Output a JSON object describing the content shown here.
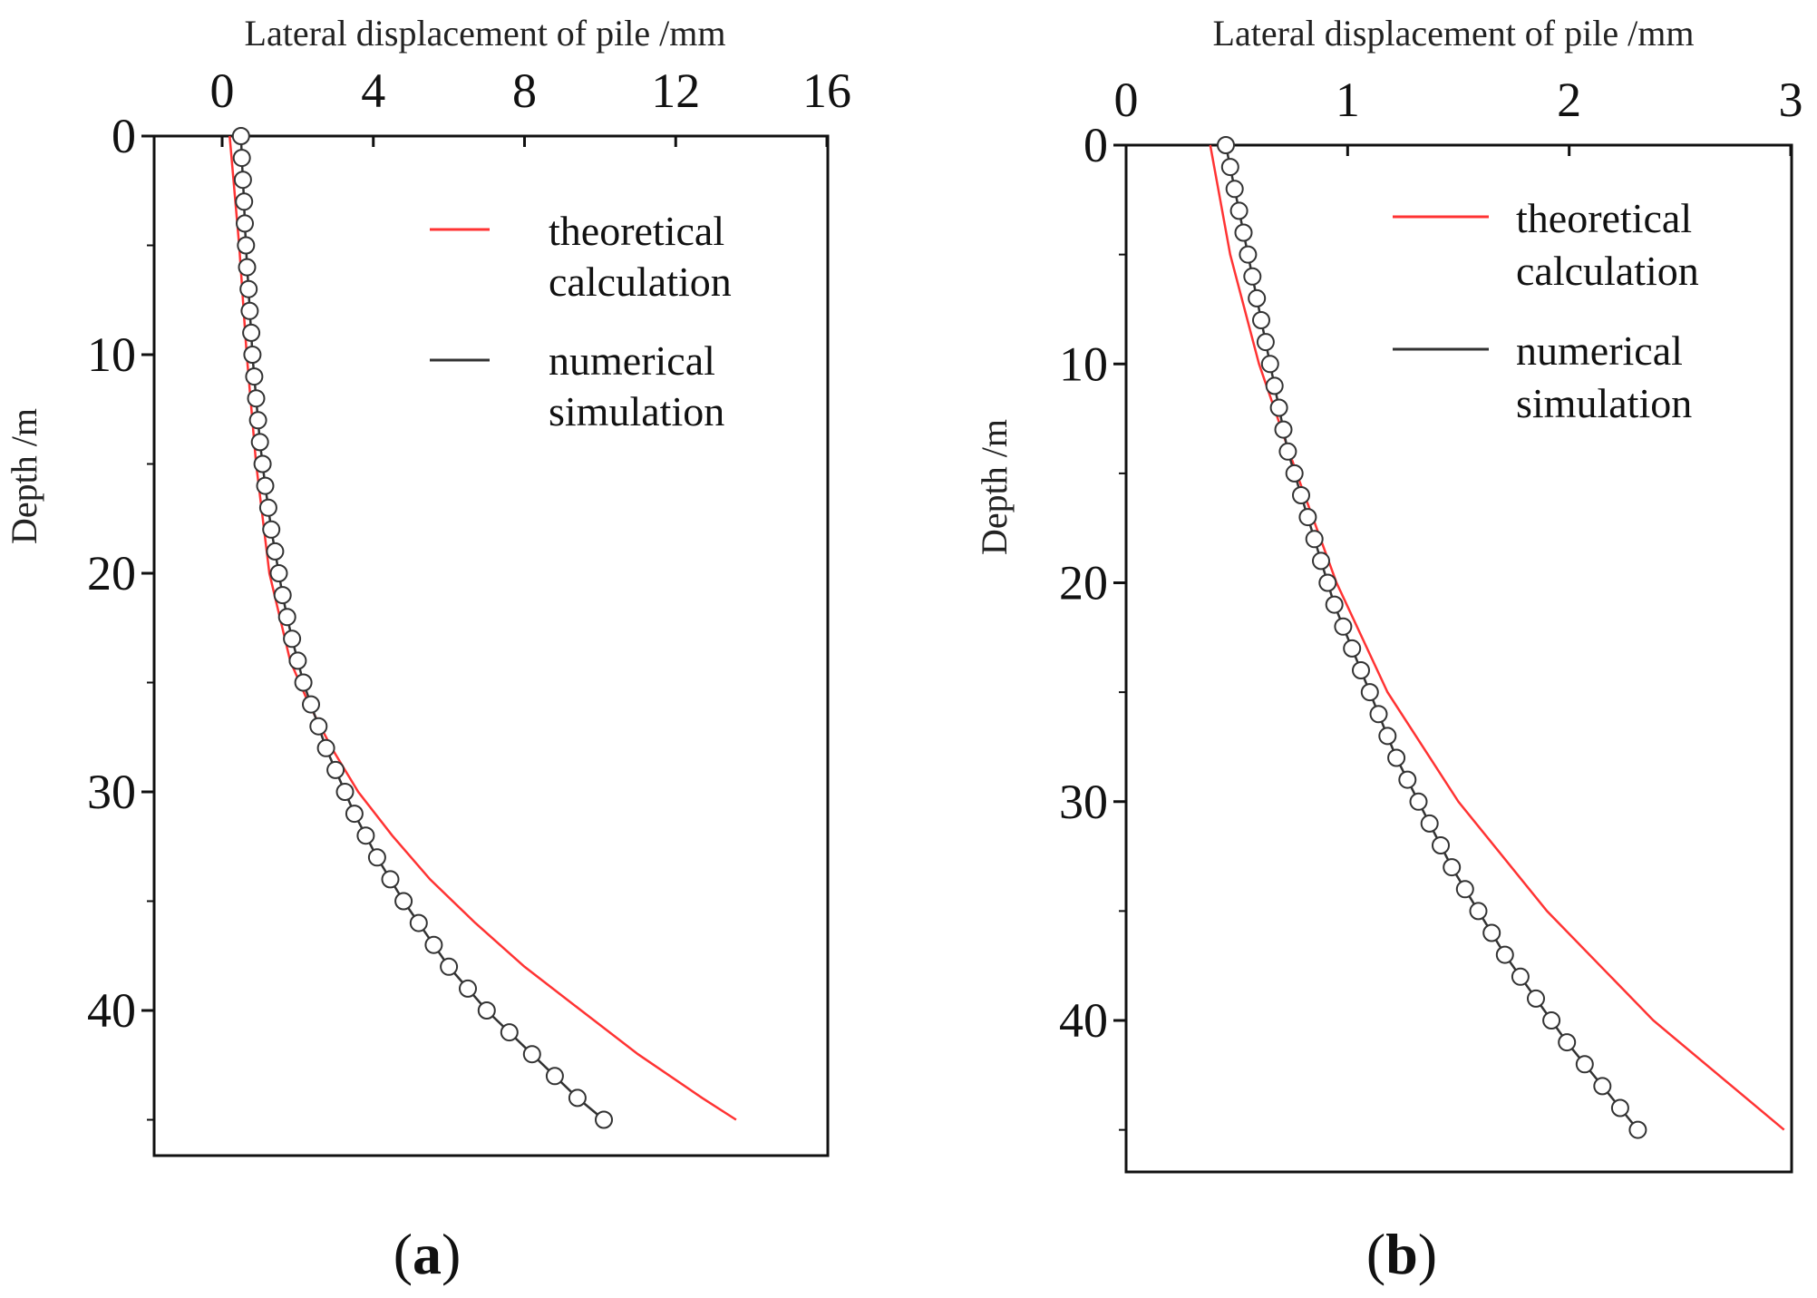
{
  "chart_data": [
    {
      "type": "line",
      "panel_label": "a",
      "xlabel": "Lateral displacement of pile /mm",
      "ylabel": "Depth /m",
      "xlim": [
        -1,
        16
      ],
      "ylim": [
        0,
        47
      ],
      "xticks": [
        0,
        4,
        8,
        12,
        16
      ],
      "yticks": [
        0,
        10,
        20,
        30,
        40
      ],
      "legend_position": "top-right",
      "series": [
        {
          "name": "theoretical calculation",
          "color": "#ff3333",
          "marker": "none",
          "depth": [
            0,
            5,
            10,
            15,
            20,
            24,
            26,
            28,
            30,
            32,
            34,
            36,
            38,
            40,
            42,
            44,
            45
          ],
          "displacement": [
            0.2,
            0.45,
            0.65,
            0.9,
            1.25,
            1.8,
            2.3,
            2.9,
            3.6,
            4.5,
            5.5,
            6.7,
            8.0,
            9.5,
            11.0,
            12.7,
            13.6
          ]
        },
        {
          "name": "numerical simulation",
          "color": "#333333",
          "marker": "circle",
          "depth": [
            0,
            1,
            2,
            3,
            4,
            5,
            6,
            7,
            8,
            9,
            10,
            11,
            12,
            13,
            14,
            15,
            16,
            17,
            18,
            19,
            20,
            21,
            22,
            23,
            24,
            25,
            26,
            27,
            28,
            29,
            30,
            31,
            32,
            33,
            34,
            35,
            36,
            37,
            38,
            39,
            40,
            41,
            42,
            43,
            44,
            45
          ],
          "displacement": [
            0.5,
            0.52,
            0.55,
            0.58,
            0.6,
            0.63,
            0.66,
            0.7,
            0.73,
            0.77,
            0.8,
            0.85,
            0.9,
            0.95,
            1.0,
            1.07,
            1.14,
            1.22,
            1.3,
            1.4,
            1.5,
            1.6,
            1.72,
            1.85,
            2.0,
            2.15,
            2.35,
            2.55,
            2.75,
            3.0,
            3.25,
            3.5,
            3.8,
            4.1,
            4.45,
            4.8,
            5.2,
            5.6,
            6.0,
            6.5,
            7.0,
            7.6,
            8.2,
            8.8,
            9.4,
            10.1
          ]
        }
      ]
    },
    {
      "type": "line",
      "panel_label": "b",
      "xlabel": "Lateral displacement of pile /mm",
      "ylabel": "Depth /m",
      "xlim": [
        0,
        3
      ],
      "ylim": [
        0,
        47
      ],
      "xticks": [
        0,
        1,
        2,
        3
      ],
      "yticks": [
        0,
        10,
        20,
        30,
        40
      ],
      "legend_position": "top-right",
      "series": [
        {
          "name": "theoretical calculation",
          "color": "#ff3333",
          "marker": "none",
          "depth": [
            0,
            5,
            10,
            15,
            20,
            25,
            30,
            35,
            40,
            45
          ],
          "displacement": [
            0.38,
            0.47,
            0.6,
            0.77,
            0.95,
            1.18,
            1.5,
            1.9,
            2.38,
            2.97
          ]
        },
        {
          "name": "numerical simulation",
          "color": "#333333",
          "marker": "circle",
          "depth": [
            0,
            1,
            2,
            3,
            4,
            5,
            6,
            7,
            8,
            9,
            10,
            11,
            12,
            13,
            14,
            15,
            16,
            17,
            18,
            19,
            20,
            21,
            22,
            23,
            24,
            25,
            26,
            27,
            28,
            29,
            30,
            31,
            32,
            33,
            34,
            35,
            36,
            37,
            38,
            39,
            40,
            41,
            42,
            43,
            44,
            45
          ],
          "displacement": [
            0.45,
            0.47,
            0.49,
            0.51,
            0.53,
            0.55,
            0.57,
            0.59,
            0.61,
            0.63,
            0.65,
            0.67,
            0.69,
            0.71,
            0.73,
            0.76,
            0.79,
            0.82,
            0.85,
            0.88,
            0.91,
            0.94,
            0.98,
            1.02,
            1.06,
            1.1,
            1.14,
            1.18,
            1.22,
            1.27,
            1.32,
            1.37,
            1.42,
            1.47,
            1.53,
            1.59,
            1.65,
            1.71,
            1.78,
            1.85,
            1.92,
            1.99,
            2.07,
            2.15,
            2.23,
            2.31
          ]
        }
      ]
    }
  ]
}
